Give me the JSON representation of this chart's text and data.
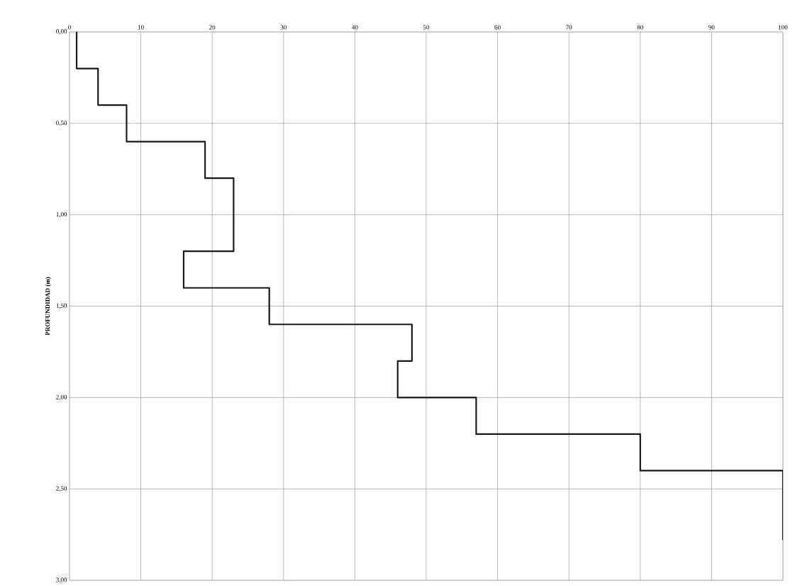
{
  "chart_data": {
    "type": "line",
    "ylabel": "PROFUNDIDAD (m)",
    "x": [
      1,
      1,
      4,
      4,
      8,
      8,
      19,
      19,
      23,
      23,
      16,
      16,
      28,
      28,
      48,
      48,
      46,
      46,
      57,
      57,
      80,
      80,
      100,
      100
    ],
    "values": [
      0,
      0.2,
      0.2,
      0.4,
      0.4,
      0.6,
      0.6,
      0.8,
      0.8,
      1.2,
      1.2,
      1.4,
      1.4,
      1.6,
      1.6,
      1.8,
      1.8,
      2.0,
      2.0,
      2.2,
      2.2,
      2.4,
      2.4,
      2.78
    ],
    "color": "#1a1a1a",
    "line_style": "solid",
    "marker": "none",
    "xlim": [
      0,
      100
    ],
    "xticks": [
      0,
      10,
      20,
      30,
      40,
      50,
      60,
      70,
      80,
      90,
      100
    ],
    "ylim": [
      3,
      0
    ],
    "yticks": [
      {
        "value": 0,
        "label": "0,00"
      },
      {
        "value": 0.5,
        "label": "0,50"
      },
      {
        "value": 1,
        "label": "1,00"
      },
      {
        "value": 1.5,
        "label": "1,50"
      },
      {
        "value": 2,
        "label": "2,00"
      },
      {
        "value": 2.5,
        "label": "2,50"
      },
      {
        "value": 3,
        "label": "3,00"
      }
    ],
    "grid": true
  }
}
